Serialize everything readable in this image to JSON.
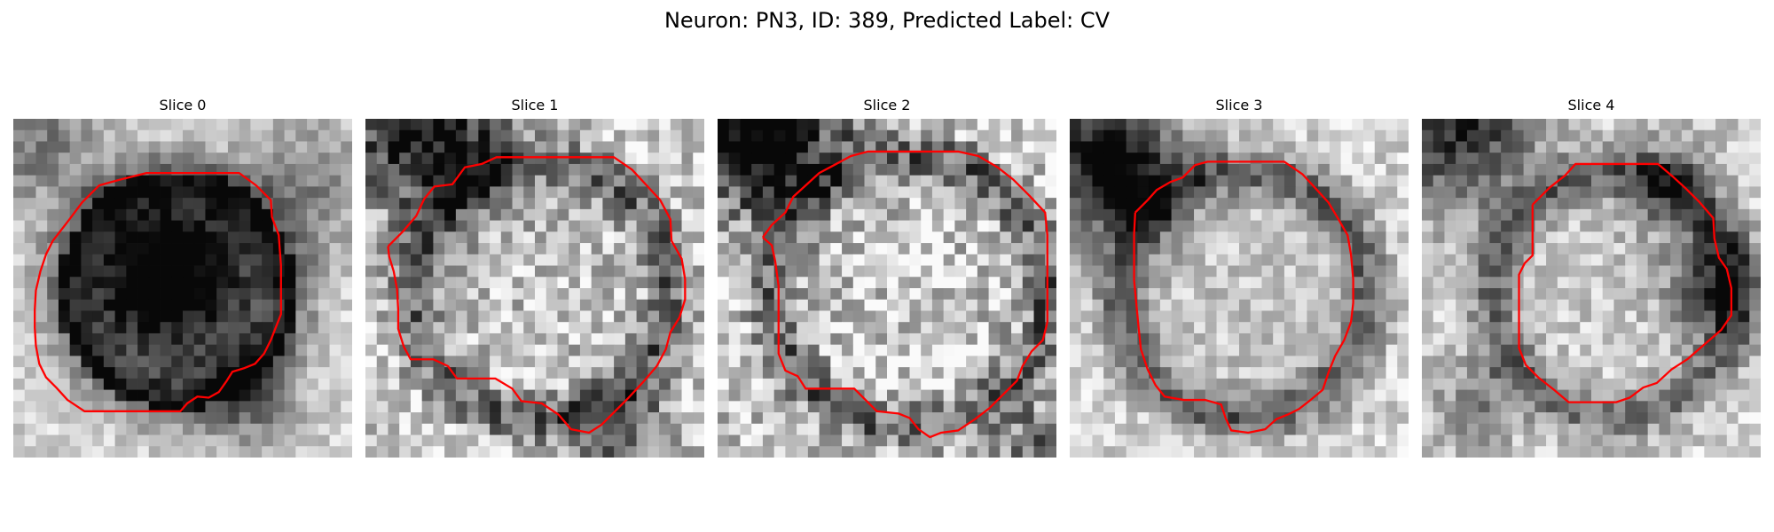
{
  "figure": {
    "title": "Neuron: PN3, ID: 389, Predicted Label: CV"
  },
  "slices": [
    {
      "title": "Slice 0",
      "contour_color": "#ff0000",
      "contour": [
        [
          3.5,
          10.8
        ],
        [
          4.9,
          9.0
        ],
        [
          6.1,
          7.4
        ],
        [
          7.6,
          5.9
        ],
        [
          9.4,
          5.4
        ],
        [
          11.8,
          4.8
        ],
        [
          14.6,
          4.8
        ],
        [
          17.7,
          4.8
        ],
        [
          20.0,
          4.8
        ],
        [
          21.5,
          5.9
        ],
        [
          22.8,
          7.2
        ],
        [
          22.9,
          8.7
        ],
        [
          23.5,
          10.3
        ],
        [
          23.7,
          13.0
        ],
        [
          23.7,
          15.4
        ],
        [
          23.7,
          17.3
        ],
        [
          22.8,
          19.6
        ],
        [
          22.2,
          20.8
        ],
        [
          21.4,
          21.7
        ],
        [
          20.4,
          22.1
        ],
        [
          19.4,
          22.4
        ],
        [
          18.9,
          23.2
        ],
        [
          18.2,
          24.2
        ],
        [
          17.3,
          24.7
        ],
        [
          16.3,
          24.6
        ],
        [
          15.4,
          25.2
        ],
        [
          14.8,
          25.9
        ],
        [
          12.0,
          25.9
        ],
        [
          9.4,
          25.9
        ],
        [
          6.3,
          25.9
        ],
        [
          4.8,
          24.9
        ],
        [
          3.8,
          23.8
        ],
        [
          2.9,
          22.9
        ],
        [
          2.3,
          21.7
        ],
        [
          2.0,
          20.1
        ],
        [
          1.9,
          18.5
        ],
        [
          1.9,
          16.9
        ],
        [
          2.0,
          15.2
        ],
        [
          2.4,
          13.5
        ],
        [
          2.9,
          12.0
        ]
      ],
      "grid": "c0"
    },
    {
      "title": "Slice 1",
      "contour_color": "#ff0000",
      "contour": [
        [
          2.0,
          11.3
        ],
        [
          3.3,
          10.0
        ],
        [
          4.5,
          8.6
        ],
        [
          5.2,
          7.1
        ],
        [
          6.1,
          6.0
        ],
        [
          7.7,
          5.8
        ],
        [
          8.8,
          4.3
        ],
        [
          10.3,
          4.0
        ],
        [
          11.6,
          3.4
        ],
        [
          13.5,
          3.4
        ],
        [
          16.0,
          3.4
        ],
        [
          19.5,
          3.4
        ],
        [
          22.0,
          3.4
        ],
        [
          23.6,
          4.5
        ],
        [
          24.9,
          5.9
        ],
        [
          26.1,
          7.2
        ],
        [
          27.0,
          8.9
        ],
        [
          27.1,
          10.8
        ],
        [
          28.0,
          12.4
        ],
        [
          28.3,
          14.2
        ],
        [
          28.3,
          16.0
        ],
        [
          27.8,
          17.6
        ],
        [
          27.0,
          18.9
        ],
        [
          26.6,
          20.4
        ],
        [
          25.8,
          21.9
        ],
        [
          24.6,
          23.3
        ],
        [
          23.3,
          24.7
        ],
        [
          22.2,
          25.8
        ],
        [
          20.9,
          27.1
        ],
        [
          19.8,
          27.8
        ],
        [
          18.2,
          27.5
        ],
        [
          17.1,
          26.2
        ],
        [
          15.6,
          25.2
        ],
        [
          13.8,
          25.0
        ],
        [
          13.0,
          23.9
        ],
        [
          11.5,
          23.0
        ],
        [
          10.0,
          23.0
        ],
        [
          8.1,
          23.0
        ],
        [
          7.3,
          21.9
        ],
        [
          6.0,
          21.3
        ],
        [
          4.0,
          21.3
        ],
        [
          3.4,
          20.2
        ],
        [
          2.9,
          18.6
        ],
        [
          2.9,
          16.9
        ],
        [
          2.8,
          15.1
        ],
        [
          2.5,
          13.5
        ],
        [
          2.1,
          12.2
        ]
      ]
    },
    {
      "title": "Slice 2",
      "contour_color": "#ff0000",
      "contour": [
        [
          4.0,
          10.5
        ],
        [
          4.8,
          9.4
        ],
        [
          6.0,
          8.3
        ],
        [
          6.7,
          6.9
        ],
        [
          7.8,
          5.9
        ],
        [
          9.0,
          4.8
        ],
        [
          10.5,
          4.0
        ],
        [
          11.8,
          3.3
        ],
        [
          13.3,
          2.9
        ],
        [
          15.4,
          2.9
        ],
        [
          18.2,
          2.9
        ],
        [
          21.3,
          2.9
        ],
        [
          23.1,
          3.3
        ],
        [
          24.8,
          4.3
        ],
        [
          26.2,
          5.4
        ],
        [
          27.6,
          6.8
        ],
        [
          29.0,
          8.3
        ],
        [
          29.2,
          10.3
        ],
        [
          29.2,
          12.9
        ],
        [
          29.2,
          15.3
        ],
        [
          29.2,
          18.0
        ],
        [
          28.8,
          19.6
        ],
        [
          27.8,
          20.6
        ],
        [
          27.0,
          21.9
        ],
        [
          26.5,
          23.2
        ],
        [
          25.4,
          24.3
        ],
        [
          24.1,
          25.6
        ],
        [
          22.8,
          26.6
        ],
        [
          21.3,
          27.6
        ],
        [
          19.8,
          27.8
        ],
        [
          18.8,
          28.2
        ],
        [
          17.8,
          27.5
        ],
        [
          17.0,
          26.5
        ],
        [
          16.0,
          26.1
        ],
        [
          14.1,
          25.9
        ],
        [
          13.2,
          25.0
        ],
        [
          12.1,
          23.9
        ],
        [
          10.0,
          23.9
        ],
        [
          7.8,
          23.9
        ],
        [
          7.1,
          22.8
        ],
        [
          6.0,
          22.3
        ],
        [
          5.4,
          20.8
        ],
        [
          5.4,
          18.7
        ],
        [
          5.4,
          16.8
        ],
        [
          5.4,
          14.8
        ],
        [
          5.1,
          12.6
        ],
        [
          4.8,
          11.2
        ]
      ]
    },
    {
      "title": "Slice 3",
      "contour_color": "#ff0000",
      "contour": [
        [
          5.8,
          8.3
        ],
        [
          6.9,
          7.2
        ],
        [
          7.7,
          6.3
        ],
        [
          8.9,
          5.6
        ],
        [
          10.0,
          5.2
        ],
        [
          11.1,
          4.1
        ],
        [
          12.2,
          3.8
        ],
        [
          14.5,
          3.8
        ],
        [
          17.2,
          3.8
        ],
        [
          19.0,
          3.8
        ],
        [
          20.6,
          4.9
        ],
        [
          21.8,
          6.2
        ],
        [
          22.9,
          7.4
        ],
        [
          23.8,
          8.9
        ],
        [
          24.6,
          10.3
        ],
        [
          24.9,
          12.0
        ],
        [
          25.1,
          14.2
        ],
        [
          25.1,
          16.3
        ],
        [
          24.9,
          18.0
        ],
        [
          24.3,
          19.6
        ],
        [
          23.5,
          21.0
        ],
        [
          22.9,
          22.5
        ],
        [
          22.4,
          24.0
        ],
        [
          21.2,
          25.0
        ],
        [
          20.3,
          25.7
        ],
        [
          19.3,
          26.2
        ],
        [
          18.3,
          26.6
        ],
        [
          17.3,
          27.5
        ],
        [
          15.8,
          27.8
        ],
        [
          14.3,
          27.6
        ],
        [
          13.8,
          26.5
        ],
        [
          13.4,
          25.3
        ],
        [
          12.0,
          24.9
        ],
        [
          10.1,
          24.9
        ],
        [
          8.4,
          24.6
        ],
        [
          7.6,
          23.6
        ],
        [
          6.9,
          22.2
        ],
        [
          6.3,
          20.4
        ],
        [
          6.1,
          18.5
        ],
        [
          5.9,
          16.4
        ],
        [
          5.7,
          14.3
        ],
        [
          5.7,
          12.1
        ],
        [
          5.7,
          10.2
        ]
      ]
    },
    {
      "title": "Slice 4",
      "contour_color": "#ff0000",
      "contour": [
        [
          9.8,
          7.6
        ],
        [
          11.3,
          6.1
        ],
        [
          12.7,
          5.0
        ],
        [
          13.6,
          4.0
        ],
        [
          15.5,
          4.0
        ],
        [
          18.2,
          4.0
        ],
        [
          20.9,
          4.0
        ],
        [
          22.2,
          5.1
        ],
        [
          23.4,
          6.2
        ],
        [
          24.6,
          7.4
        ],
        [
          25.8,
          8.8
        ],
        [
          25.9,
          10.6
        ],
        [
          26.3,
          12.3
        ],
        [
          27.0,
          13.3
        ],
        [
          27.4,
          15.0
        ],
        [
          27.4,
          17.4
        ],
        [
          26.5,
          18.7
        ],
        [
          25.0,
          20.0
        ],
        [
          23.5,
          21.3
        ],
        [
          22.1,
          22.2
        ],
        [
          20.8,
          23.4
        ],
        [
          19.6,
          23.8
        ],
        [
          18.4,
          24.7
        ],
        [
          17.2,
          25.1
        ],
        [
          15.3,
          25.1
        ],
        [
          13.0,
          25.1
        ],
        [
          11.7,
          24.0
        ],
        [
          10.3,
          22.9
        ],
        [
          9.2,
          21.8
        ],
        [
          8.6,
          20.3
        ],
        [
          8.6,
          18.2
        ],
        [
          8.6,
          16.0
        ],
        [
          8.6,
          13.8
        ],
        [
          9.1,
          12.8
        ],
        [
          9.8,
          12.1
        ],
        [
          9.8,
          10.3
        ]
      ]
    }
  ]
}
